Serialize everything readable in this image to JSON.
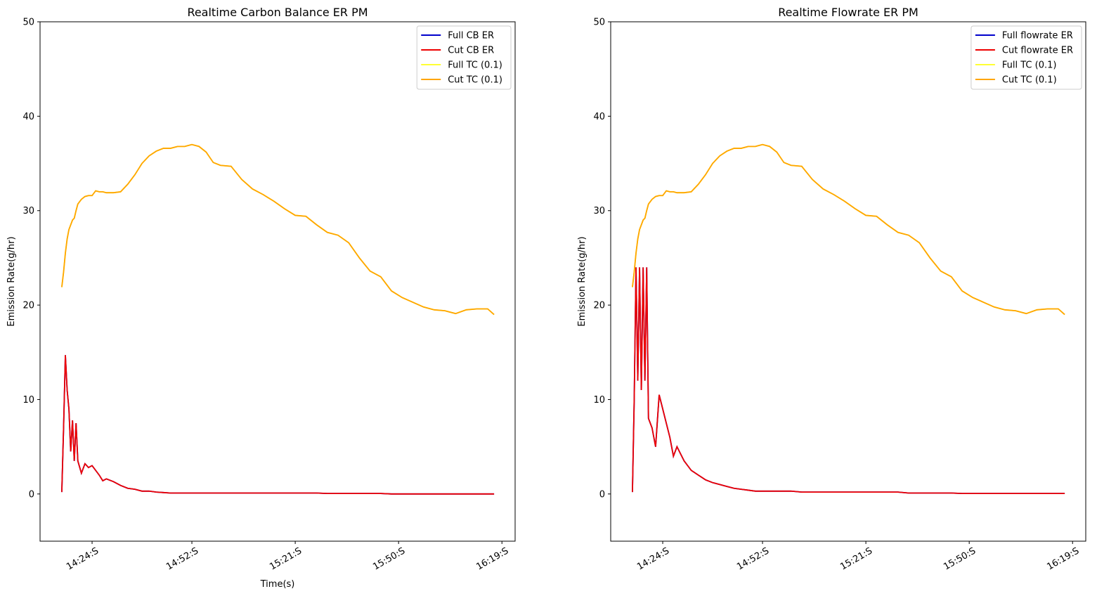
{
  "chart_data": [
    {
      "type": "line",
      "title": "Realtime Carbon Balance ER PM",
      "xlabel": "Time(s)",
      "ylabel": "Emission Rate(g/hr)",
      "xlim": [
        849.4,
        982.7
      ],
      "ylim": [
        -5,
        50
      ],
      "xticks": [
        {
          "value": 864,
          "label": "14:24:S"
        },
        {
          "value": 892,
          "label": "14:52:S"
        },
        {
          "value": 921,
          "label": "15:21:S"
        },
        {
          "value": 950,
          "label": "15:50:S"
        },
        {
          "value": 979,
          "label": "16:19:S"
        }
      ],
      "yticks": [
        0,
        10,
        20,
        30,
        40,
        50
      ],
      "legend": "upper right",
      "grid": false,
      "x": [
        855.5,
        856,
        856.5,
        857,
        857.5,
        858,
        858.5,
        859,
        859.5,
        860,
        861,
        862,
        863,
        864,
        865,
        866,
        867,
        868,
        870,
        872,
        874,
        876,
        878,
        880,
        882,
        884,
        886,
        888,
        890,
        892,
        894,
        896,
        898,
        900,
        903,
        906,
        909,
        912,
        915,
        918,
        921,
        924,
        927,
        930,
        933,
        936,
        939,
        942,
        945,
        948,
        951,
        954,
        957,
        960,
        963,
        966,
        969,
        972,
        975,
        976.8
      ],
      "series": [
        {
          "name": "Full CB ER",
          "color": "#0000cc",
          "values": [
            0.2,
            7,
            14.7,
            11,
            9,
            4.5,
            7.8,
            3.5,
            7.5,
            3.5,
            2.2,
            3.2,
            2.8,
            3,
            2.5,
            2,
            1.4,
            1.6,
            1.3,
            0.9,
            0.6,
            0.5,
            0.3,
            0.3,
            0.2,
            0.15,
            0.1,
            0.1,
            0.1,
            0.1,
            0.1,
            0.1,
            0.1,
            0.1,
            0.1,
            0.1,
            0.1,
            0.1,
            0.1,
            0.1,
            0.1,
            0.1,
            0.1,
            0.05,
            0.05,
            0.05,
            0.05,
            0.05,
            0.05,
            0,
            0,
            0,
            0,
            0,
            0,
            0,
            0,
            0,
            0,
            0
          ]
        },
        {
          "name": "Cut CB ER",
          "color": "#ee0000",
          "values": [
            0.2,
            7,
            14.7,
            11,
            9,
            4.5,
            7.8,
            3.5,
            7.5,
            3.5,
            2.2,
            3.2,
            2.8,
            3,
            2.5,
            2,
            1.4,
            1.6,
            1.3,
            0.9,
            0.6,
            0.5,
            0.3,
            0.3,
            0.2,
            0.15,
            0.1,
            0.1,
            0.1,
            0.1,
            0.1,
            0.1,
            0.1,
            0.1,
            0.1,
            0.1,
            0.1,
            0.1,
            0.1,
            0.1,
            0.1,
            0.1,
            0.1,
            0.05,
            0.05,
            0.05,
            0.05,
            0.05,
            0.05,
            0,
            0,
            0,
            0,
            0,
            0,
            0,
            0,
            0,
            0,
            0
          ]
        },
        {
          "name": "Full TC (0.1)",
          "color": "#ffff33",
          "values": [
            21.9,
            23.5,
            25.5,
            27,
            28,
            28.5,
            29,
            29.2,
            30,
            30.7,
            31.2,
            31.5,
            31.6,
            31.6,
            32.1,
            32,
            32,
            31.9,
            31.9,
            32,
            32.8,
            33.8,
            35,
            35.8,
            36.3,
            36.6,
            36.6,
            36.8,
            36.8,
            37,
            36.8,
            36.2,
            35.1,
            34.8,
            34.7,
            33.3,
            32.3,
            31.7,
            31,
            30.2,
            29.5,
            29.4,
            28.5,
            27.7,
            27.4,
            26.6,
            25,
            23.6,
            23,
            21.5,
            20.8,
            20.3,
            19.8,
            19.5,
            19.4,
            19.1,
            19.5,
            19.6,
            19.6,
            19
          ]
        },
        {
          "name": "Cut TC (0.1)",
          "color": "#ffa500",
          "values": [
            21.9,
            23.5,
            25.5,
            27,
            28,
            28.5,
            29,
            29.2,
            30,
            30.7,
            31.2,
            31.5,
            31.6,
            31.6,
            32.1,
            32,
            32,
            31.9,
            31.9,
            32,
            32.8,
            33.8,
            35,
            35.8,
            36.3,
            36.6,
            36.6,
            36.8,
            36.8,
            37,
            36.8,
            36.2,
            35.1,
            34.8,
            34.7,
            33.3,
            32.3,
            31.7,
            31,
            30.2,
            29.5,
            29.4,
            28.5,
            27.7,
            27.4,
            26.6,
            25,
            23.6,
            23,
            21.5,
            20.8,
            20.3,
            19.8,
            19.5,
            19.4,
            19.1,
            19.5,
            19.6,
            19.6,
            19
          ]
        }
      ]
    },
    {
      "type": "line",
      "title": "Realtime Flowrate ER PM",
      "ylabel": "Emission Rate(g/hr)",
      "xlim": [
        849.4,
        982.7
      ],
      "ylim": [
        -5,
        50
      ],
      "xticks": [
        {
          "value": 864,
          "label": "14:24:S"
        },
        {
          "value": 892,
          "label": "14:52:S"
        },
        {
          "value": 921,
          "label": "15:21:S"
        },
        {
          "value": 950,
          "label": "15:50:S"
        },
        {
          "value": 979,
          "label": "16:19:S"
        }
      ],
      "yticks": [
        0,
        10,
        20,
        30,
        40,
        50
      ],
      "legend": "upper right",
      "grid": false,
      "x": [
        855.5,
        856,
        856.5,
        857,
        857.5,
        858,
        858.5,
        859,
        859.5,
        860,
        861,
        862,
        863,
        864,
        865,
        866,
        867,
        868,
        870,
        872,
        874,
        876,
        878,
        880,
        882,
        884,
        886,
        888,
        890,
        892,
        894,
        896,
        898,
        900,
        903,
        906,
        909,
        912,
        915,
        918,
        921,
        924,
        927,
        930,
        933,
        936,
        939,
        942,
        945,
        948,
        951,
        954,
        957,
        960,
        963,
        966,
        969,
        972,
        975,
        976.8
      ],
      "series": [
        {
          "name": "Full flowrate ER",
          "color": "#0000cc",
          "values": [
            0.2,
            10,
            24,
            12,
            24,
            11,
            24,
            12,
            24,
            8,
            7,
            5,
            10.5,
            9,
            7.5,
            6,
            4,
            5,
            3.5,
            2.5,
            2,
            1.5,
            1.2,
            1,
            0.8,
            0.6,
            0.5,
            0.4,
            0.3,
            0.3,
            0.3,
            0.3,
            0.3,
            0.3,
            0.2,
            0.2,
            0.2,
            0.2,
            0.2,
            0.2,
            0.2,
            0.2,
            0.2,
            0.2,
            0.1,
            0.1,
            0.1,
            0.1,
            0.1,
            0.05,
            0.05,
            0.05,
            0.05,
            0.05,
            0.05,
            0.05,
            0.05,
            0.05,
            0.05,
            0.05
          ]
        },
        {
          "name": "Cut flowrate ER",
          "color": "#ee0000",
          "values": [
            0.2,
            10,
            24,
            12,
            24,
            11,
            24,
            12,
            24,
            8,
            7,
            5,
            10.5,
            9,
            7.5,
            6,
            4,
            5,
            3.5,
            2.5,
            2,
            1.5,
            1.2,
            1,
            0.8,
            0.6,
            0.5,
            0.4,
            0.3,
            0.3,
            0.3,
            0.3,
            0.3,
            0.3,
            0.2,
            0.2,
            0.2,
            0.2,
            0.2,
            0.2,
            0.2,
            0.2,
            0.2,
            0.2,
            0.1,
            0.1,
            0.1,
            0.1,
            0.1,
            0.05,
            0.05,
            0.05,
            0.05,
            0.05,
            0.05,
            0.05,
            0.05,
            0.05,
            0.05,
            0.05
          ]
        },
        {
          "name": "Full TC (0.1)",
          "color": "#ffff33",
          "values": [
            21.9,
            23.5,
            25.5,
            27,
            28,
            28.5,
            29,
            29.2,
            30,
            30.7,
            31.2,
            31.5,
            31.6,
            31.6,
            32.1,
            32,
            32,
            31.9,
            31.9,
            32,
            32.8,
            33.8,
            35,
            35.8,
            36.3,
            36.6,
            36.6,
            36.8,
            36.8,
            37,
            36.8,
            36.2,
            35.1,
            34.8,
            34.7,
            33.3,
            32.3,
            31.7,
            31,
            30.2,
            29.5,
            29.4,
            28.5,
            27.7,
            27.4,
            26.6,
            25,
            23.6,
            23,
            21.5,
            20.8,
            20.3,
            19.8,
            19.5,
            19.4,
            19.1,
            19.5,
            19.6,
            19.6,
            19
          ]
        },
        {
          "name": "Cut TC (0.1)",
          "color": "#ffa500",
          "values": [
            21.9,
            23.5,
            25.5,
            27,
            28,
            28.5,
            29,
            29.2,
            30,
            30.7,
            31.2,
            31.5,
            31.6,
            31.6,
            32.1,
            32,
            32,
            31.9,
            31.9,
            32,
            32.8,
            33.8,
            35,
            35.8,
            36.3,
            36.6,
            36.6,
            36.8,
            36.8,
            37,
            36.8,
            36.2,
            35.1,
            34.8,
            34.7,
            33.3,
            32.3,
            31.7,
            31,
            30.2,
            29.5,
            29.4,
            28.5,
            27.7,
            27.4,
            26.6,
            25,
            23.6,
            23,
            21.5,
            20.8,
            20.3,
            19.8,
            19.5,
            19.4,
            19.1,
            19.5,
            19.6,
            19.6,
            19
          ]
        }
      ]
    }
  ]
}
